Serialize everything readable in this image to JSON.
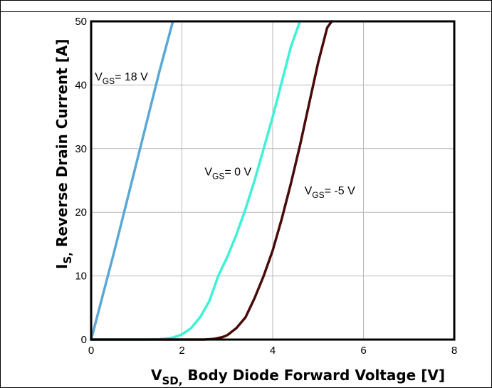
{
  "chart_data": {
    "type": "line",
    "xlim": [
      0,
      8
    ],
    "ylim": [
      0,
      50
    ],
    "x_ticks": [
      "0",
      "2",
      "4",
      "6",
      "8"
    ],
    "y_ticks": [
      "0",
      "10",
      "20",
      "30",
      "40",
      "50"
    ],
    "grid": true,
    "xlabel": {
      "main": "V",
      "sub": "SD,",
      "rest": " Body Diode Forward Voltage [V]"
    },
    "ylabel": {
      "main": "I",
      "sub": "S,",
      "rest": " Reverse Drain Current [A]"
    },
    "series": [
      {
        "name": "VGS= 18 V",
        "label": {
          "main": "V",
          "sub": "GS",
          "rest": "= 18 V"
        },
        "color": "#5ba8d6",
        "points": [
          [
            0,
            0
          ],
          [
            0.5,
            13.6
          ],
          [
            1.0,
            27.8
          ],
          [
            1.5,
            42.0
          ],
          [
            1.8,
            50
          ]
        ]
      },
      {
        "name": "VGS= 0 V",
        "label": {
          "main": "V",
          "sub": "GS",
          "rest": "= 0 V"
        },
        "color": "#3ff2d6",
        "points": [
          [
            0,
            0
          ],
          [
            1.2,
            0
          ],
          [
            1.5,
            0.05
          ],
          [
            1.8,
            0.3
          ],
          [
            2.0,
            0.8
          ],
          [
            2.2,
            1.8
          ],
          [
            2.4,
            3.5
          ],
          [
            2.6,
            6.0
          ],
          [
            2.8,
            10.0
          ],
          [
            3.0,
            13.0
          ],
          [
            3.2,
            16.5
          ],
          [
            3.4,
            20.5
          ],
          [
            3.6,
            25.0
          ],
          [
            3.8,
            30.0
          ],
          [
            4.0,
            35.0
          ],
          [
            4.2,
            40.5
          ],
          [
            4.4,
            46.0
          ],
          [
            4.6,
            50
          ]
        ]
      },
      {
        "name": "VGS= -5 V",
        "label": {
          "main": "V",
          "sub": "GS",
          "rest": "= -5 V"
        },
        "color": "#4a0a0a",
        "points": [
          [
            0,
            0
          ],
          [
            2.5,
            0
          ],
          [
            2.7,
            0.1
          ],
          [
            2.9,
            0.4
          ],
          [
            3.0,
            0.7
          ],
          [
            3.2,
            1.8
          ],
          [
            3.4,
            3.5
          ],
          [
            3.6,
            6.5
          ],
          [
            3.8,
            10.0
          ],
          [
            4.0,
            14.0
          ],
          [
            4.2,
            19.0
          ],
          [
            4.4,
            24.5
          ],
          [
            4.6,
            30.5
          ],
          [
            4.8,
            37.0
          ],
          [
            5.0,
            43.5
          ],
          [
            5.2,
            49.0
          ],
          [
            5.3,
            50
          ]
        ]
      }
    ]
  }
}
